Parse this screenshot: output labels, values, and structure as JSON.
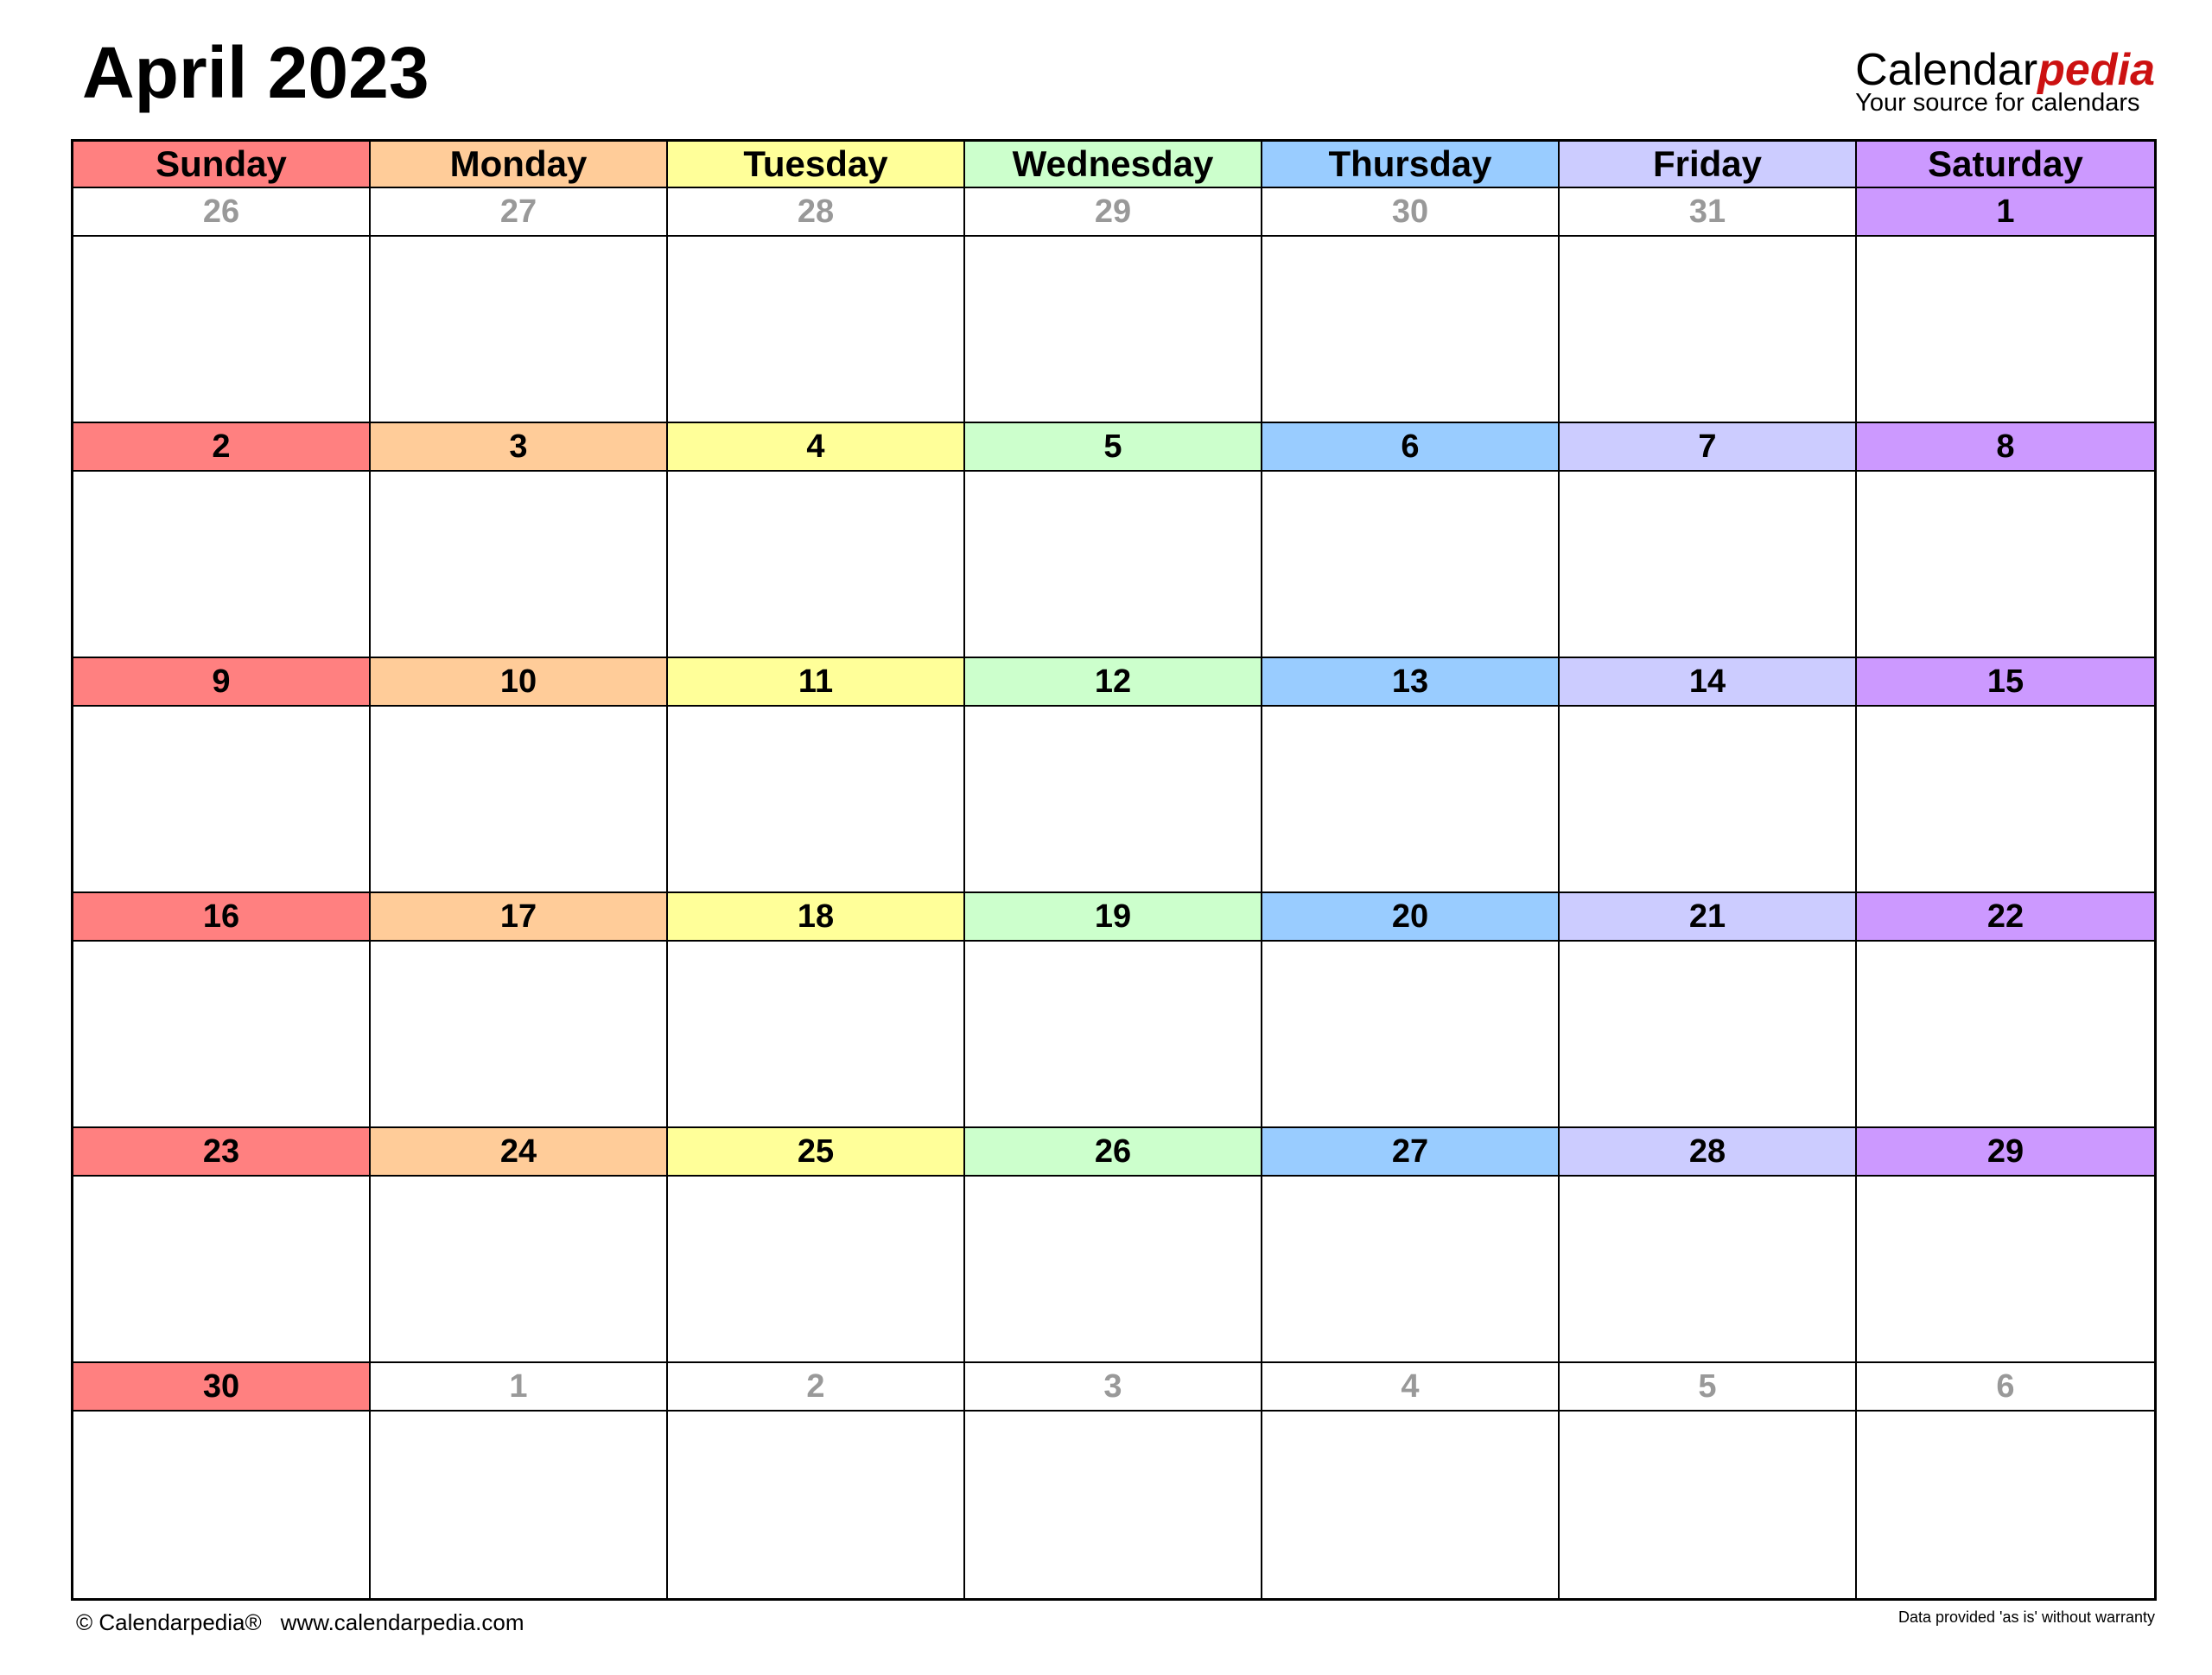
{
  "title": "April 2023",
  "logo": {
    "brand_main": "Calendar",
    "brand_accent": "pedia",
    "tagline": "Your source for calendars",
    "accent_color": "#cc1111"
  },
  "weekdays": [
    {
      "label": "Sunday",
      "color": "#FF8080"
    },
    {
      "label": "Monday",
      "color": "#FFCC99"
    },
    {
      "label": "Tuesday",
      "color": "#FFFF99"
    },
    {
      "label": "Wednesday",
      "color": "#CCFFCC"
    },
    {
      "label": "Thursday",
      "color": "#99CCFF"
    },
    {
      "label": "Friday",
      "color": "#CCCCFF"
    },
    {
      "label": "Saturday",
      "color": "#CC99FF"
    }
  ],
  "other_month_color": "#999999",
  "weeks": [
    [
      {
        "d": "26",
        "other": true
      },
      {
        "d": "27",
        "other": true
      },
      {
        "d": "28",
        "other": true
      },
      {
        "d": "29",
        "other": true
      },
      {
        "d": "30",
        "other": true
      },
      {
        "d": "31",
        "other": true
      },
      {
        "d": "1"
      }
    ],
    [
      {
        "d": "2"
      },
      {
        "d": "3"
      },
      {
        "d": "4"
      },
      {
        "d": "5"
      },
      {
        "d": "6"
      },
      {
        "d": "7"
      },
      {
        "d": "8"
      }
    ],
    [
      {
        "d": "9"
      },
      {
        "d": "10"
      },
      {
        "d": "11"
      },
      {
        "d": "12"
      },
      {
        "d": "13"
      },
      {
        "d": "14"
      },
      {
        "d": "15"
      }
    ],
    [
      {
        "d": "16"
      },
      {
        "d": "17"
      },
      {
        "d": "18"
      },
      {
        "d": "19"
      },
      {
        "d": "20"
      },
      {
        "d": "21"
      },
      {
        "d": "22"
      }
    ],
    [
      {
        "d": "23"
      },
      {
        "d": "24"
      },
      {
        "d": "25"
      },
      {
        "d": "26"
      },
      {
        "d": "27"
      },
      {
        "d": "28"
      },
      {
        "d": "29"
      }
    ],
    [
      {
        "d": "30"
      },
      {
        "d": "1",
        "other": true
      },
      {
        "d": "2",
        "other": true
      },
      {
        "d": "3",
        "other": true
      },
      {
        "d": "4",
        "other": true
      },
      {
        "d": "5",
        "other": true
      },
      {
        "d": "6",
        "other": true
      }
    ]
  ],
  "footer": {
    "copyright": "© Calendarpedia®",
    "url": "www.calendarpedia.com",
    "disclaimer": "Data provided 'as is' without warranty"
  }
}
